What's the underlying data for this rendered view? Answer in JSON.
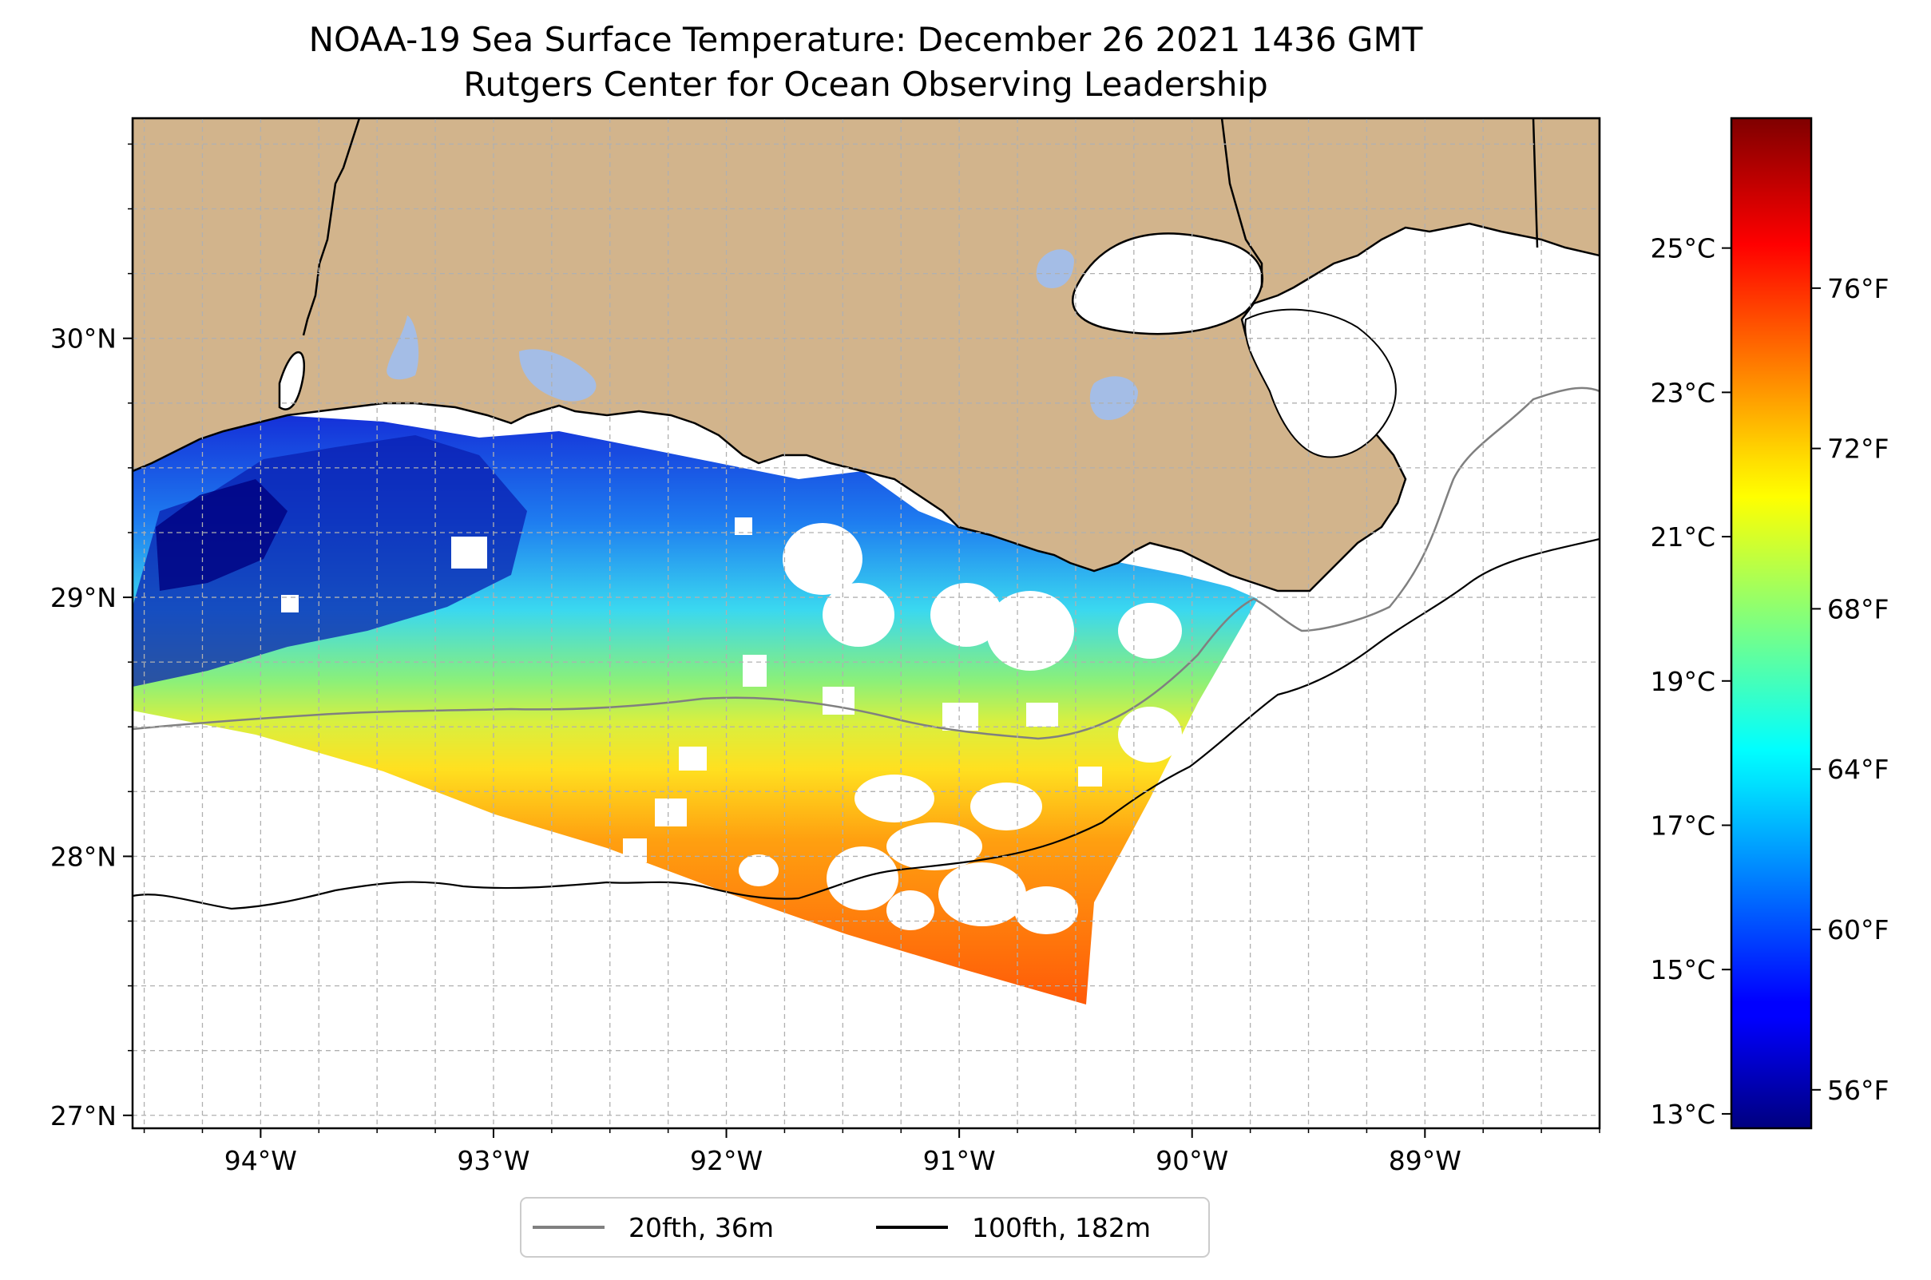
{
  "title": {
    "line1": "NOAA-19 Sea Surface Temperature: December 26 2021 1436 GMT",
    "line2": "Rutgers Center for Ocean Observing Leadership"
  },
  "map": {
    "lon_range": [
      -94.55,
      -88.25
    ],
    "lat_range": [
      26.95,
      30.85
    ],
    "lon_ticks": [
      {
        "value": -94,
        "label": "94°W"
      },
      {
        "value": -93,
        "label": "93°W"
      },
      {
        "value": -92,
        "label": "92°W"
      },
      {
        "value": -91,
        "label": "91°W"
      },
      {
        "value": -90,
        "label": "90°W"
      },
      {
        "value": -89,
        "label": "89°W"
      }
    ],
    "lat_ticks": [
      {
        "value": 27,
        "label": "27°N"
      },
      {
        "value": 28,
        "label": "28°N"
      },
      {
        "value": 29,
        "label": "29°N"
      },
      {
        "value": 30,
        "label": "30°N"
      }
    ],
    "grid": true,
    "land_color": "#d2b48c",
    "water_color": "#ffffff",
    "inland_water_color": "#a4bde6"
  },
  "colorbar": {
    "colormap": "jet",
    "celsius_ticks": [
      {
        "value": 13,
        "label": "13°C"
      },
      {
        "value": 15,
        "label": "15°C"
      },
      {
        "value": 17,
        "label": "17°C"
      },
      {
        "value": 19,
        "label": "19°C"
      },
      {
        "value": 21,
        "label": "21°C"
      },
      {
        "value": 23,
        "label": "23°C"
      },
      {
        "value": 25,
        "label": "25°C"
      }
    ],
    "fahrenheit_ticks": [
      {
        "value": 56,
        "label": "56°F"
      },
      {
        "value": 60,
        "label": "60°F"
      },
      {
        "value": 64,
        "label": "64°F"
      },
      {
        "value": 68,
        "label": "68°F"
      },
      {
        "value": 72,
        "label": "72°F"
      },
      {
        "value": 76,
        "label": "76°F"
      }
    ]
  },
  "legend": {
    "placement": "bottom-center",
    "items": [
      {
        "label": "20fth, 36m",
        "color": "#808080"
      },
      {
        "label": "100fth, 182m",
        "color": "#000000"
      }
    ]
  }
}
